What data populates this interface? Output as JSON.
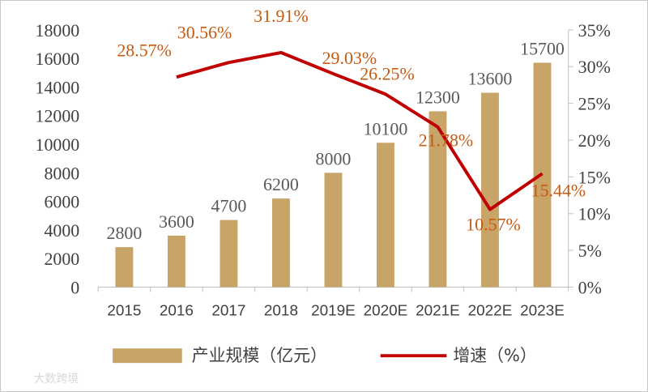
{
  "chart_data": {
    "type": "bar",
    "categories": [
      "2015",
      "2016",
      "2017",
      "2018",
      "2019E",
      "2020E",
      "2021E",
      "2022E",
      "2023E"
    ],
    "series": [
      {
        "name": "产业规模（亿元）",
        "type": "bar",
        "axis": "left",
        "values": [
          2800,
          3600,
          4700,
          6200,
          8000,
          10100,
          12300,
          13600,
          15700
        ],
        "labels": [
          "2800",
          "3600",
          "4700",
          "6200",
          "8000",
          "10100",
          "12300",
          "13600",
          "15700"
        ]
      },
      {
        "name": "增速（%）",
        "type": "line",
        "axis": "right",
        "values": [
          null,
          28.57,
          30.56,
          31.91,
          29.03,
          26.25,
          21.78,
          10.57,
          15.44
        ],
        "labels": [
          "",
          "28.57%",
          "30.56%",
          "31.91%",
          "29.03%",
          "26.25%",
          "21.78%",
          "10.57%",
          "15.44%"
        ]
      }
    ],
    "y_left": {
      "lim": [
        0,
        18000
      ],
      "ticks": [
        "0",
        "2000",
        "4000",
        "6000",
        "8000",
        "10000",
        "12000",
        "14000",
        "16000",
        "18000"
      ]
    },
    "y_right": {
      "lim": [
        0,
        35
      ],
      "ticks": [
        "0%",
        "5%",
        "10%",
        "15%",
        "20%",
        "25%",
        "30%",
        "35%"
      ]
    },
    "grid": false,
    "legend_position": "bottom",
    "colors": {
      "bar": "#c9a467",
      "line": "#c00000",
      "line_label": "#c55a11"
    }
  },
  "watermark": "大数跨境"
}
